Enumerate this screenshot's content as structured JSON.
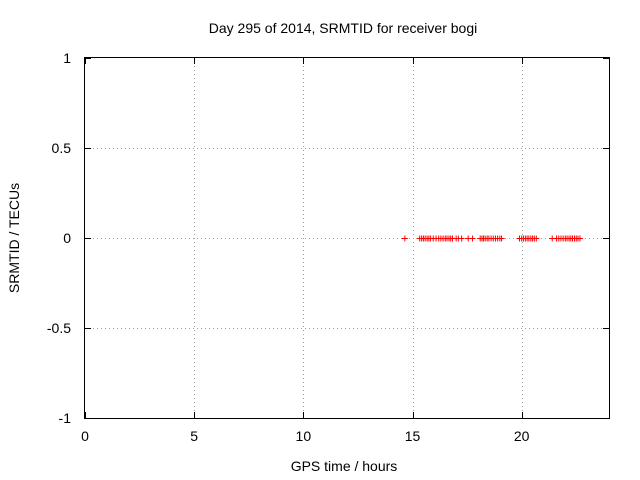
{
  "chart_data": {
    "type": "scatter",
    "title": "Day 295 of 2014, SRMTID for receiver bogi",
    "xlabel": "GPS time / hours",
    "ylabel": "SRMTID / TECUs",
    "xlim": [
      0,
      24
    ],
    "ylim": [
      -1,
      1
    ],
    "xticks": [
      0,
      5,
      10,
      15,
      20
    ],
    "xtick_labels": [
      "0",
      "5",
      "10",
      "15",
      "20"
    ],
    "yticks": [
      -1,
      -0.5,
      0,
      0.5,
      1
    ],
    "ytick_labels": [
      "-1",
      "-0.5",
      "0",
      "0.5",
      "1"
    ],
    "grid": true,
    "marker": "+",
    "marker_color": "#ff0000",
    "series": [
      {
        "name": "SRMTID",
        "x": [
          14.65,
          15.33,
          15.42,
          15.5,
          15.58,
          15.67,
          15.75,
          15.83,
          15.95,
          16.08,
          16.2,
          16.3,
          16.4,
          16.5,
          16.58,
          16.67,
          16.75,
          16.83,
          17.0,
          17.1,
          17.25,
          17.55,
          17.75,
          18.1,
          18.18,
          18.25,
          18.33,
          18.42,
          18.5,
          18.6,
          18.7,
          18.8,
          18.9,
          19.0,
          19.08,
          19.9,
          20.0,
          20.08,
          20.17,
          20.25,
          20.33,
          20.42,
          20.5,
          20.58,
          20.67,
          21.4,
          21.6,
          21.7,
          21.8,
          21.9,
          22.0,
          22.08,
          22.17,
          22.25,
          22.33,
          22.42,
          22.5,
          22.58,
          22.67
        ],
        "y": [
          0,
          0,
          0,
          0,
          0,
          0,
          0,
          0,
          0,
          0,
          0,
          0,
          0,
          0,
          0,
          0,
          0,
          0,
          0,
          0,
          0,
          0,
          0,
          0,
          0,
          0,
          0,
          0,
          0,
          0,
          0,
          0,
          0,
          0,
          0,
          0,
          0,
          0,
          0,
          0,
          0,
          0,
          0,
          0,
          0,
          0,
          0,
          0,
          0,
          0,
          0,
          0,
          0,
          0,
          0,
          0,
          0,
          0,
          0
        ]
      }
    ]
  }
}
